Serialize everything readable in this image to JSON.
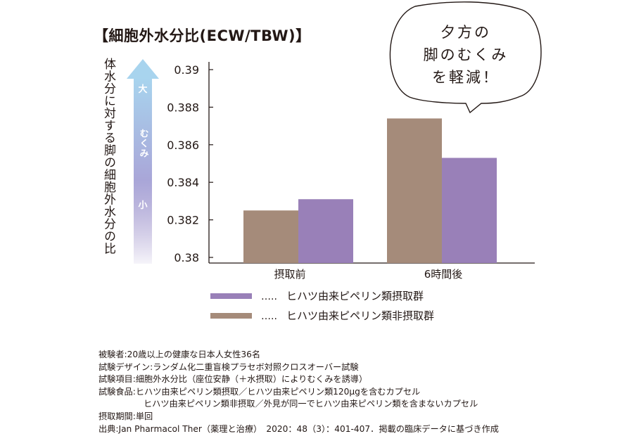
{
  "chart_data": {
    "type": "bar",
    "title": "【細胞外水分比(ECW/TBW)】",
    "ylabel": "体水分に対する脚の細胞外水分の比",
    "xlabel": "",
    "ylim": [
      0.38,
      0.39
    ],
    "yticks": [
      "0.39",
      "0.388",
      "0.386",
      "0.384",
      "0.382",
      "0.38"
    ],
    "ytick_values": [
      0.39,
      0.388,
      0.386,
      0.384,
      0.382,
      0.38
    ],
    "categories": [
      "摂取前",
      "6時間後"
    ],
    "series": [
      {
        "name": "ヒハツ由来ピペリン類非摂取群",
        "color": "#a58b7a",
        "values": [
          0.3825,
          0.3874
        ]
      },
      {
        "name": "ヒハツ由来ピペリン類摂取群",
        "color": "#9980b8",
        "values": [
          0.3831,
          0.3853
        ]
      }
    ],
    "legend": {
      "placement": "bottom",
      "prefix": "…..",
      "items": [
        {
          "name": "ヒハツ由来ピペリン類摂取群",
          "color": "#9980b8"
        },
        {
          "name": "ヒハツ由来ピペリン類非摂取群",
          "color": "#a58b7a"
        }
      ]
    },
    "grid": false,
    "swelling_arrow": {
      "top": "大",
      "middle": "むくみ",
      "bottom": "小"
    },
    "callout": [
      "夕方の",
      "脚のむくみ",
      "を軽減！"
    ]
  },
  "notes": [
    "被験者:20歳以上の健康な日本人女性36名",
    "試験デザイン:ランダム化二重盲検プラセボ対照クロスオーバー試験",
    "試験項目:細胞外水分比（座位安静（＋水摂取）によりむくみを誘導）",
    "試験食品:ヒハツ由来ピペリン類摂取／ヒハツ由来ピペリン類120μgを含むカプセル",
    "ヒハツ由来ピペリン類非摂取／外見が同一でヒハツ由来ピペリン類を含まないカプセル",
    "摂取期間:単回",
    "出典:Jan Pharmacol Ther（薬理と治療）　2020：48（3）：401-407．掲載の臨床データに基づき作成"
  ]
}
